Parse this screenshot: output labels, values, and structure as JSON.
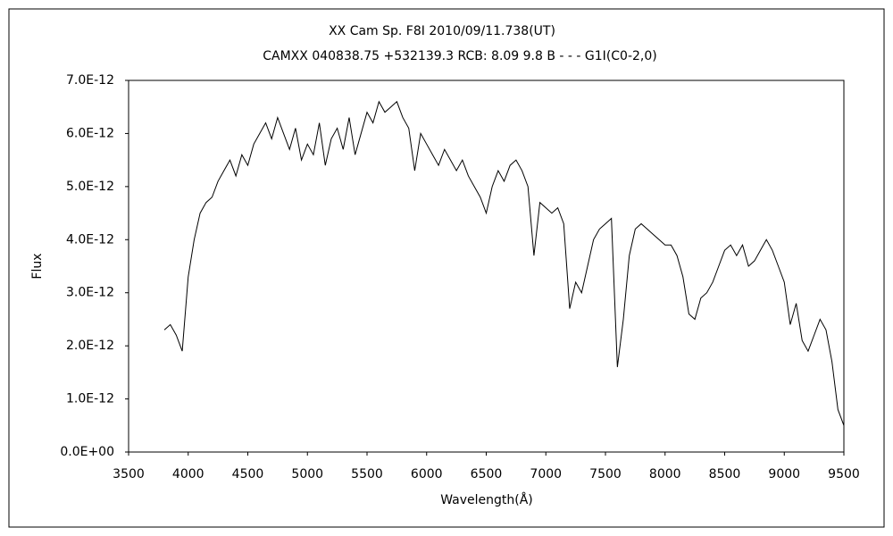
{
  "chart_data": {
    "type": "line",
    "title": "XX Cam    Sp. F8I    2010/09/11.738(UT)",
    "subtitle": "CAMXX 040838.75 +532139.3 RCB: 8.09 9.8 B - - - G1I(C0-2,0)",
    "x_label": "Wavelength(Å)",
    "y_label": "Flux",
    "x": [
      3800,
      3850,
      3900,
      3950,
      4000,
      4050,
      4100,
      4150,
      4200,
      4250,
      4300,
      4350,
      4400,
      4450,
      4500,
      4550,
      4600,
      4650,
      4700,
      4750,
      4800,
      4850,
      4900,
      4950,
      5000,
      5050,
      5100,
      5150,
      5200,
      5250,
      5300,
      5350,
      5400,
      5450,
      5500,
      5550,
      5600,
      5650,
      5700,
      5750,
      5800,
      5850,
      5900,
      5950,
      6000,
      6050,
      6100,
      6150,
      6200,
      6250,
      6300,
      6350,
      6400,
      6450,
      6500,
      6550,
      6600,
      6650,
      6700,
      6750,
      6800,
      6850,
      6900,
      6950,
      7000,
      7050,
      7100,
      7150,
      7200,
      7250,
      7300,
      7350,
      7400,
      7450,
      7500,
      7550,
      7600,
      7650,
      7700,
      7750,
      7800,
      7850,
      7900,
      7950,
      8000,
      8050,
      8100,
      8150,
      8200,
      8250,
      8300,
      8350,
      8400,
      8450,
      8500,
      8550,
      8600,
      8650,
      8700,
      8750,
      8800,
      8850,
      8900,
      8950,
      9000,
      9050,
      9100,
      9150,
      9200,
      9250,
      9300,
      9350,
      9400,
      9450,
      9500
    ],
    "series": [
      {
        "color": "#000000",
        "values": [
          2.3e-12,
          2.4e-12,
          2.2e-12,
          1.9e-12,
          3.3e-12,
          4e-12,
          4.5e-12,
          4.7e-12,
          4.8e-12,
          5.1e-12,
          5.3e-12,
          5.5e-12,
          5.2e-12,
          5.6e-12,
          5.4e-12,
          5.8e-12,
          6e-12,
          6.2e-12,
          5.9e-12,
          6.3e-12,
          6e-12,
          5.7e-12,
          6.1e-12,
          5.5e-12,
          5.8e-12,
          5.6e-12,
          6.2e-12,
          5.4e-12,
          5.9e-12,
          6.1e-12,
          5.7e-12,
          6.3e-12,
          5.6e-12,
          6e-12,
          6.4e-12,
          6.2e-12,
          6.6e-12,
          6.4e-12,
          6.5e-12,
          6.6e-12,
          6.3e-12,
          6.1e-12,
          5.3e-12,
          6e-12,
          5.8e-12,
          5.6e-12,
          5.4e-12,
          5.7e-12,
          5.5e-12,
          5.3e-12,
          5.5e-12,
          5.2e-12,
          5e-12,
          4.8e-12,
          4.5e-12,
          5e-12,
          5.3e-12,
          5.1e-12,
          5.4e-12,
          5.5e-12,
          5.3e-12,
          5e-12,
          3.7e-12,
          4.7e-12,
          4.6e-12,
          4.5e-12,
          4.6e-12,
          4.3e-12,
          2.7e-12,
          3.2e-12,
          3e-12,
          3.5e-12,
          4e-12,
          4.2e-12,
          4.3e-12,
          4.4e-12,
          1.6e-12,
          2.5e-12,
          3.7e-12,
          4.2e-12,
          4.3e-12,
          4.2e-12,
          4.1e-12,
          4e-12,
          3.9e-12,
          3.9e-12,
          3.7e-12,
          3.3e-12,
          2.6e-12,
          2.5e-12,
          2.9e-12,
          3e-12,
          3.2e-12,
          3.5e-12,
          3.8e-12,
          3.9e-12,
          3.7e-12,
          3.9e-12,
          3.5e-12,
          3.6e-12,
          3.8e-12,
          4e-12,
          3.8e-12,
          3.5e-12,
          3.2e-12,
          2.4e-12,
          2.8e-12,
          2.1e-12,
          1.9e-12,
          2.2e-12,
          2.5e-12,
          2.3e-12,
          1.7e-12,
          8e-13,
          5e-13
        ]
      }
    ],
    "xlim": [
      3500,
      9500
    ],
    "xticks": [
      3500,
      4000,
      4500,
      5000,
      5500,
      6000,
      6500,
      7000,
      7500,
      8000,
      8500,
      9000,
      9500
    ],
    "ylim": [
      0,
      7e-12
    ],
    "yticks": [
      {
        "value": 0,
        "label": "0.0E+00"
      },
      {
        "value": 1e-12,
        "label": "1.0E-12"
      },
      {
        "value": 2e-12,
        "label": "2.0E-12"
      },
      {
        "value": 3e-12,
        "label": "3.0E-12"
      },
      {
        "value": 4e-12,
        "label": "4.0E-12"
      },
      {
        "value": 5e-12,
        "label": "5.0E-12"
      },
      {
        "value": 6e-12,
        "label": "6.0E-12"
      },
      {
        "value": 7e-12,
        "label": "7.0E-12"
      }
    ],
    "grid": false
  }
}
